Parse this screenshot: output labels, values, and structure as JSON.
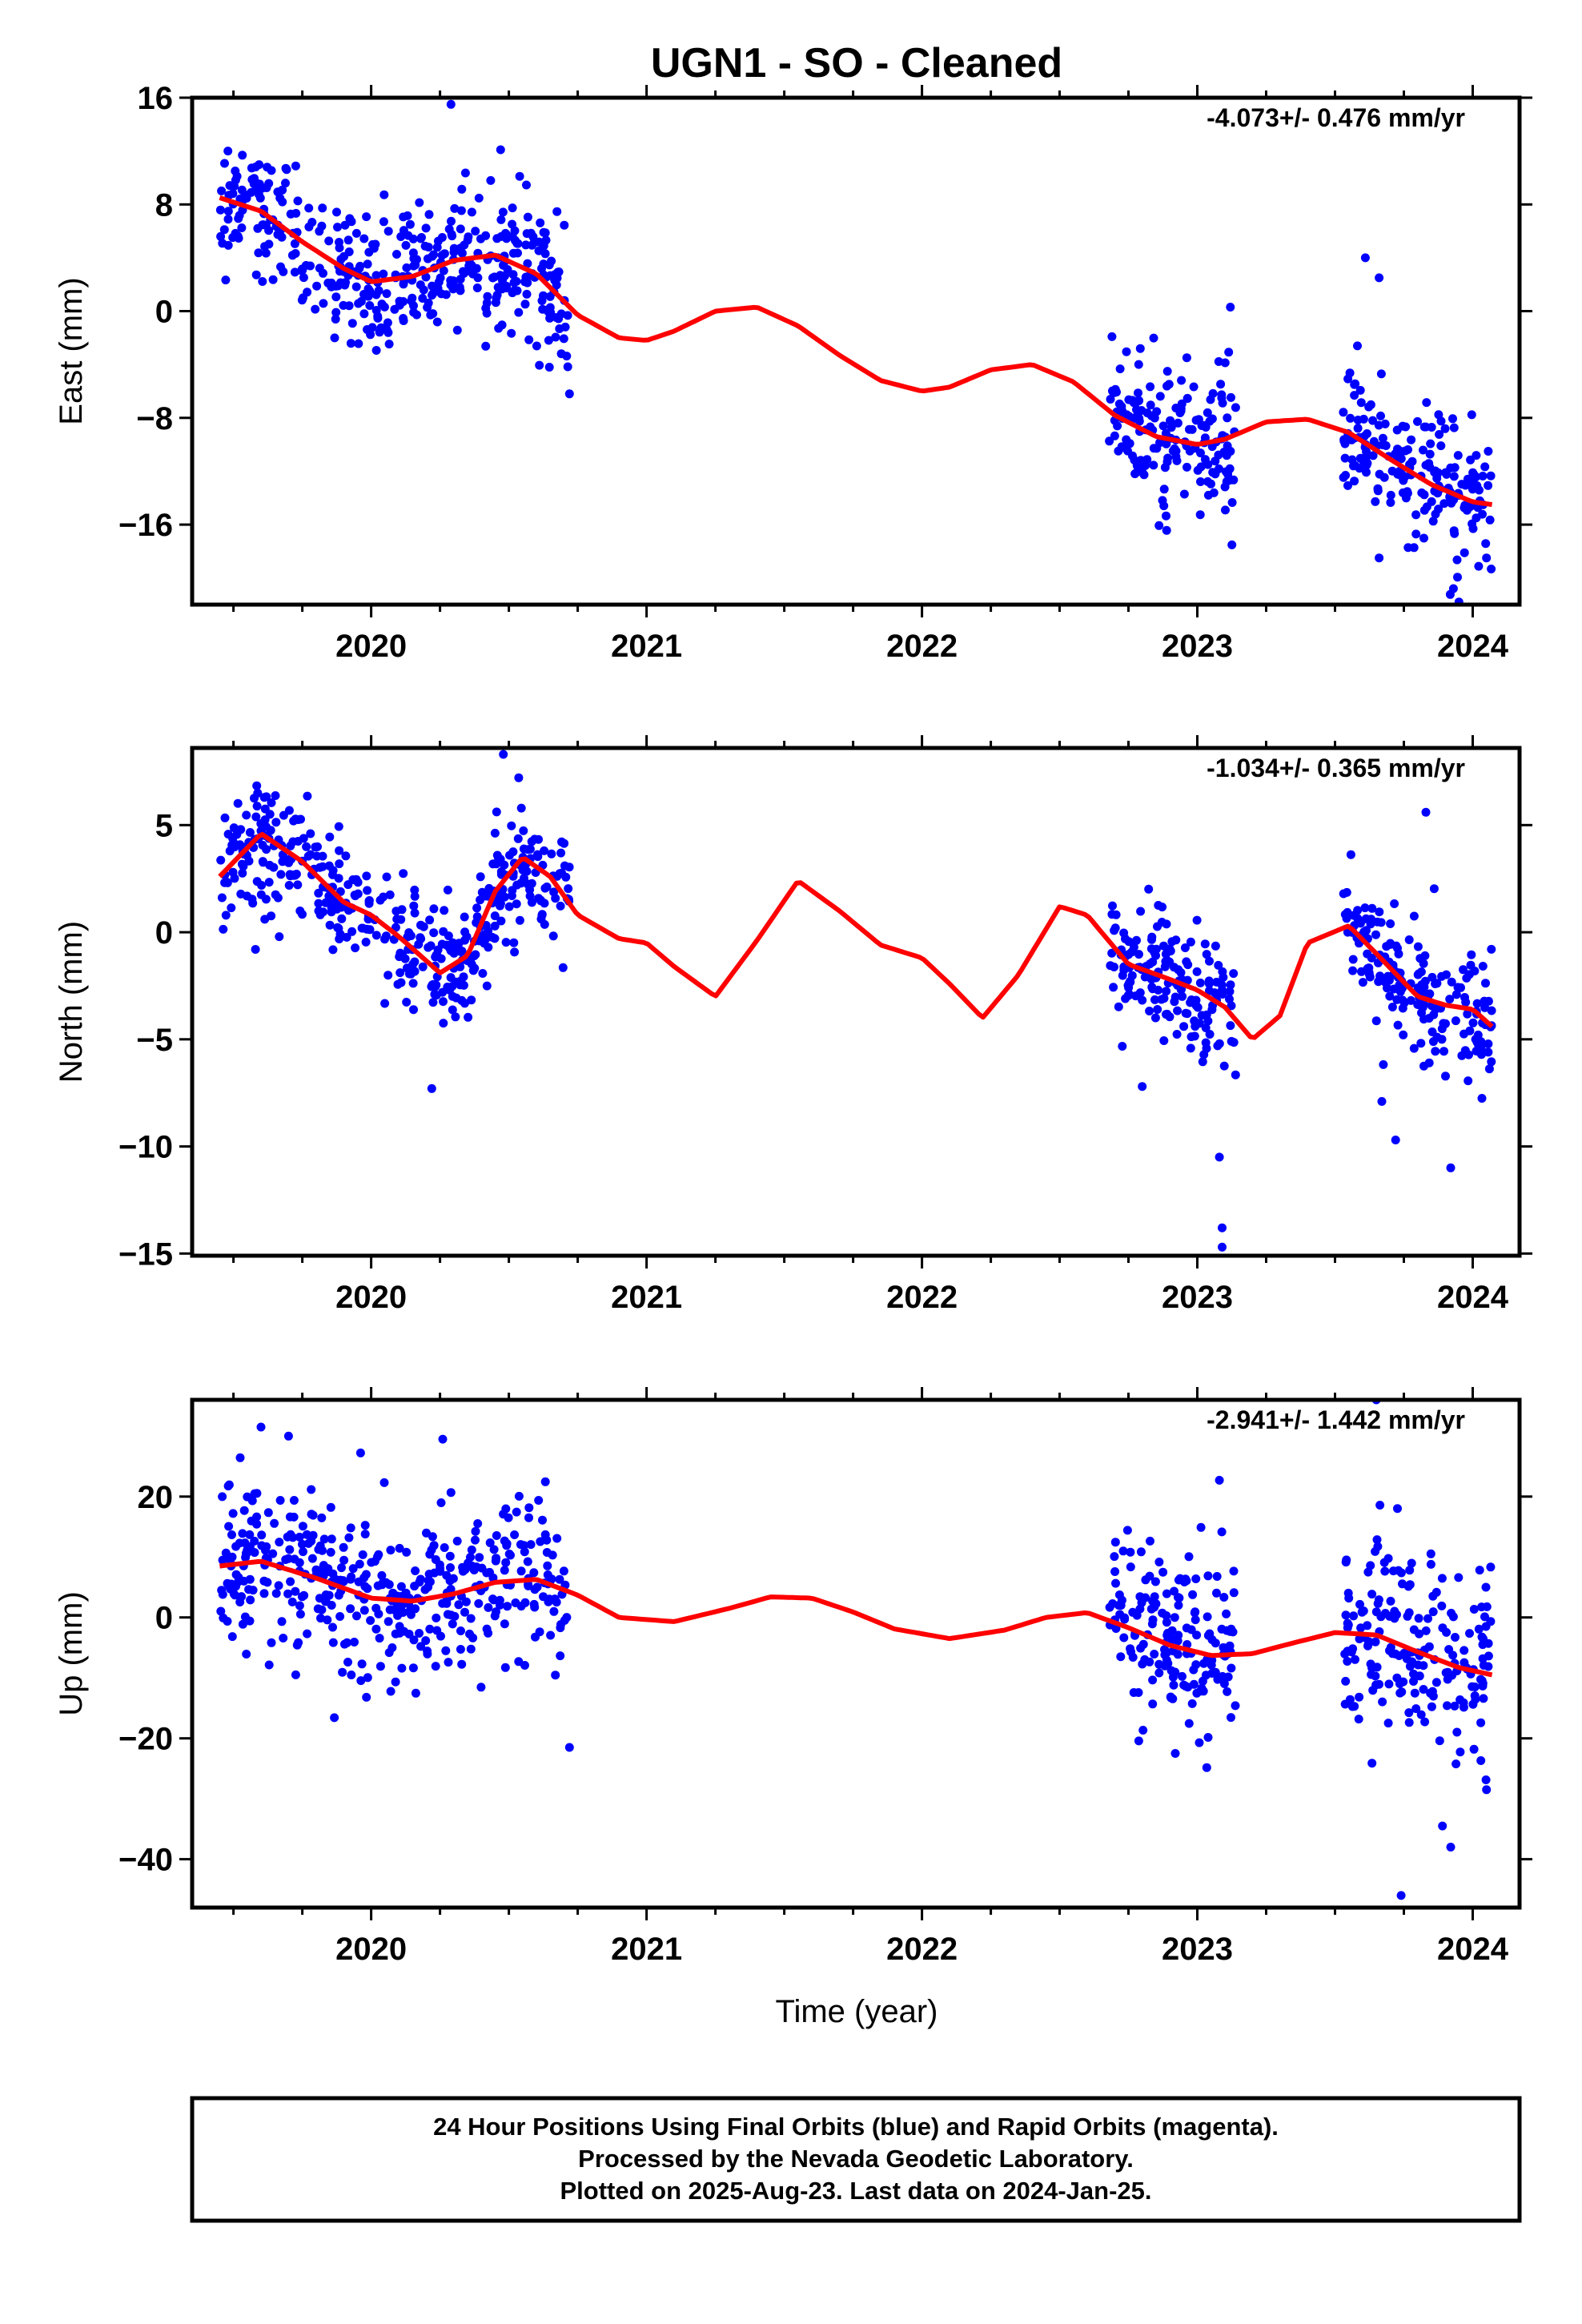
{
  "title": "UGN1  - SO - Cleaned",
  "xlabel": "Time (year)",
  "footer": {
    "line1": "24 Hour Positions Using Final Orbits (blue) and Rapid Orbits (magenta).",
    "line2": "Processed by the Nevada Geodetic Laboratory.",
    "line3": "Plotted on 2025-Aug-23. Last data on 2024-Jan-25."
  },
  "colors": {
    "points": "#0000ff",
    "model": "#ff0000",
    "frame": "#000000"
  },
  "chart_data": [
    {
      "type": "scatter",
      "ylabel": "East (mm)",
      "rate_label": "-4.073+/- 0.476 mm/yr",
      "xlim": [
        2019.35,
        2024.17
      ],
      "ylim": [
        -22,
        16
      ],
      "xticks": [
        2020,
        2021,
        2022,
        2023,
        2024
      ],
      "xtick_labels": [
        "2020",
        "2021",
        "2022",
        "2023",
        "2024"
      ],
      "yticks": [
        16,
        8,
        0,
        -8,
        -16
      ],
      "ytick_labels": [
        "16",
        "8",
        "0",
        "−8",
        "−16"
      ],
      "grid": false,
      "model_series": {
        "name": "model",
        "x": [
          2019.45,
          2019.6,
          2019.75,
          2019.9,
          2020.0,
          2020.15,
          2020.3,
          2020.45,
          2020.6,
          2020.75,
          2020.9,
          2021.0,
          2021.1,
          2021.25,
          2021.4,
          2021.55,
          2021.7,
          2021.85,
          2022.0,
          2022.1,
          2022.25,
          2022.4,
          2022.55,
          2022.7,
          2022.85,
          2023.0,
          2023.1,
          2023.25,
          2023.4,
          2023.55,
          2023.7,
          2023.85,
          2024.0,
          2024.07
        ],
        "y": [
          8.5,
          7.5,
          5.2,
          3.2,
          2.2,
          2.6,
          3.8,
          4.2,
          2.8,
          -0.3,
          -2.0,
          -2.2,
          -1.5,
          0.0,
          0.3,
          -1.1,
          -3.3,
          -5.2,
          -6.0,
          -5.7,
          -4.4,
          -4.0,
          -5.3,
          -7.8,
          -9.4,
          -10.0,
          -9.6,
          -8.3,
          -8.1,
          -9.1,
          -11.1,
          -13.0,
          -14.3,
          -14.5
        ]
      },
      "observations": {
        "name": "observations",
        "segments": [
          {
            "x0": 2019.45,
            "x1": 2020.72,
            "n": 430,
            "spread": 2.6
          },
          {
            "x0": 2022.68,
            "x1": 2023.14,
            "n": 170,
            "spread": 2.6
          },
          {
            "x0": 2023.53,
            "x1": 2024.07,
            "n": 190,
            "spread": 2.8
          }
        ],
        "highlights": [
          {
            "x": 2020.29,
            "y": 15.5
          },
          {
            "x": 2020.47,
            "y": 12.1
          },
          {
            "x": 2019.48,
            "y": 12.0
          },
          {
            "x": 2023.66,
            "y": 2.5
          },
          {
            "x": 2023.61,
            "y": 4.0
          },
          {
            "x": 2023.66,
            "y": -18.5
          },
          {
            "x": 2023.93,
            "y": -20.8
          },
          {
            "x": 2023.95,
            "y": -21.8
          },
          {
            "x": 2024.05,
            "y": -18.5
          },
          {
            "x": 2023.12,
            "y": 0.3
          },
          {
            "x": 2020.72,
            "y": -6.2
          }
        ]
      }
    },
    {
      "type": "scatter",
      "ylabel": "North (mm)",
      "rate_label": "-1.034+/- 0.365 mm/yr",
      "xlim": [
        2019.35,
        2024.17
      ],
      "ylim": [
        -15.1,
        8.6
      ],
      "xticks": [
        2020,
        2021,
        2022,
        2023,
        2024
      ],
      "xtick_labels": [
        "2020",
        "2021",
        "2022",
        "2023",
        "2024"
      ],
      "yticks": [
        5,
        0,
        -5,
        -10,
        -15
      ],
      "ytick_labels": [
        "5",
        "0",
        "−5",
        "−10",
        "−15"
      ],
      "grid": false,
      "model_series": {
        "name": "model",
        "x": [
          2019.45,
          2019.6,
          2019.75,
          2019.9,
          2020.0,
          2020.1,
          2020.25,
          2020.35,
          2020.45,
          2020.55,
          2020.65,
          2020.75,
          2020.9,
          2021.0,
          2021.1,
          2021.25,
          2021.4,
          2021.55,
          2021.7,
          2021.85,
          2022.0,
          2022.1,
          2022.22,
          2022.35,
          2022.5,
          2022.6,
          2022.75,
          2022.9,
          2023.0,
          2023.1,
          2023.2,
          2023.3,
          2023.4,
          2023.55,
          2023.65,
          2023.8,
          2023.9,
          2024.0,
          2024.07
        ],
        "y": [
          2.6,
          4.6,
          3.3,
          1.4,
          0.8,
          -0.2,
          -1.9,
          -1.1,
          1.9,
          3.5,
          2.6,
          0.8,
          -0.3,
          -0.5,
          -1.6,
          -3.0,
          -0.4,
          2.4,
          1.0,
          -0.6,
          -1.2,
          -2.4,
          -4.0,
          -2.0,
          1.2,
          0.8,
          -1.5,
          -2.2,
          -2.7,
          -3.5,
          -5.0,
          -3.9,
          -0.5,
          0.3,
          -1.0,
          -3.0,
          -3.4,
          -3.6,
          -4.4
        ]
      },
      "observations": {
        "name": "observations",
        "segments": [
          {
            "x0": 2019.45,
            "x1": 2020.72,
            "n": 430,
            "spread": 1.4
          },
          {
            "x0": 2022.68,
            "x1": 2023.14,
            "n": 170,
            "spread": 1.4
          },
          {
            "x0": 2023.53,
            "x1": 2024.07,
            "n": 190,
            "spread": 1.5
          }
        ],
        "highlights": [
          {
            "x": 2020.48,
            "y": 8.3
          },
          {
            "x": 2023.09,
            "y": -14.7
          },
          {
            "x": 2023.09,
            "y": -13.8
          },
          {
            "x": 2023.08,
            "y": -10.5
          },
          {
            "x": 2023.92,
            "y": -11.0
          },
          {
            "x": 2023.72,
            "y": -9.7
          },
          {
            "x": 2023.83,
            "y": 5.6
          },
          {
            "x": 2020.22,
            "y": -7.3
          },
          {
            "x": 2019.58,
            "y": -0.8
          },
          {
            "x": 2022.8,
            "y": -7.2
          },
          {
            "x": 2023.67,
            "y": -7.9
          }
        ]
      }
    },
    {
      "type": "scatter",
      "ylabel": "Up (mm)",
      "rate_label": "-2.941+/- 1.442 mm/yr",
      "xlim": [
        2019.35,
        2024.17
      ],
      "ylim": [
        -48,
        36
      ],
      "xticks": [
        2020,
        2021,
        2022,
        2023,
        2024
      ],
      "xtick_labels": [
        "2020",
        "2021",
        "2022",
        "2023",
        "2024"
      ],
      "yticks": [
        20,
        0,
        -20,
        -40
      ],
      "ytick_labels": [
        "20",
        "0",
        "−20",
        "−40"
      ],
      "grid": false,
      "model_series": {
        "name": "model",
        "x": [
          2019.45,
          2019.6,
          2019.8,
          2020.0,
          2020.15,
          2020.3,
          2020.45,
          2020.6,
          2020.75,
          2020.9,
          2021.1,
          2021.3,
          2021.45,
          2021.6,
          2021.75,
          2021.9,
          2022.1,
          2022.3,
          2022.45,
          2022.6,
          2022.75,
          2022.9,
          2023.05,
          2023.2,
          2023.35,
          2023.5,
          2023.65,
          2023.8,
          2023.95,
          2024.07
        ],
        "y": [
          8.5,
          9.3,
          6.5,
          3.2,
          2.7,
          3.9,
          5.8,
          6.3,
          3.7,
          0.0,
          -0.7,
          1.5,
          3.4,
          3.2,
          0.9,
          -1.9,
          -3.5,
          -2.1,
          0.0,
          0.8,
          -1.7,
          -4.6,
          -6.3,
          -6.0,
          -4.2,
          -2.5,
          -2.9,
          -5.7,
          -8.3,
          -9.5
        ]
      },
      "observations": {
        "name": "observations",
        "segments": [
          {
            "x0": 2019.45,
            "x1": 2020.72,
            "n": 430,
            "spread": 7.0
          },
          {
            "x0": 2022.68,
            "x1": 2023.14,
            "n": 170,
            "spread": 7.0
          },
          {
            "x0": 2023.53,
            "x1": 2024.07,
            "n": 190,
            "spread": 8.0
          }
        ],
        "highlights": [
          {
            "x": 2019.6,
            "y": 31.5
          },
          {
            "x": 2020.26,
            "y": 29.5
          },
          {
            "x": 2019.7,
            "y": 30.0
          },
          {
            "x": 2023.65,
            "y": 36.0
          },
          {
            "x": 2023.74,
            "y": -46.0
          },
          {
            "x": 2023.92,
            "y": -38.0
          },
          {
            "x": 2023.89,
            "y": -34.5
          },
          {
            "x": 2023.08,
            "y": 22.7
          },
          {
            "x": 2020.72,
            "y": -21.5
          },
          {
            "x": 2022.92,
            "y": -22.5
          },
          {
            "x": 2024.05,
            "y": -28.5
          }
        ]
      }
    }
  ]
}
